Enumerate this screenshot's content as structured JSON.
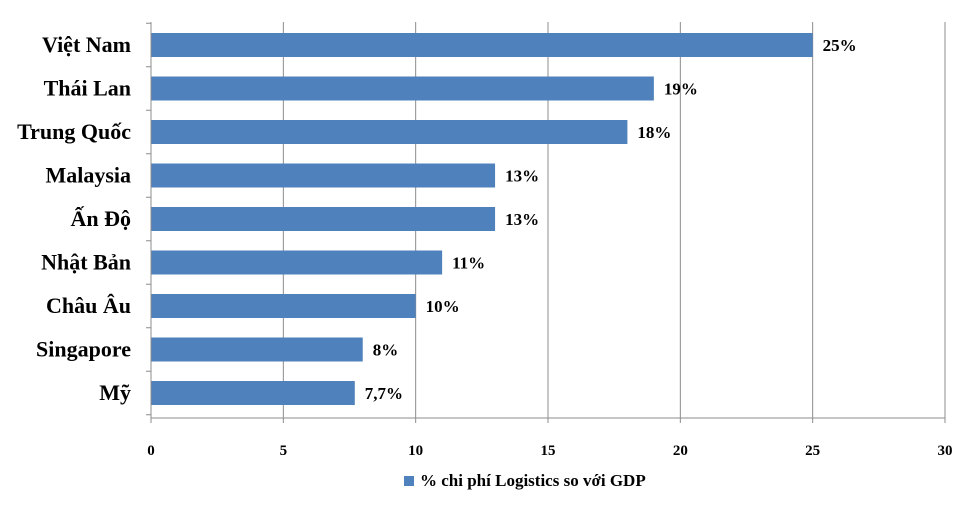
{
  "chart_data": {
    "type": "bar",
    "orientation": "horizontal",
    "categories": [
      "Việt Nam",
      "Thái Lan",
      "Trung Quốc",
      "Malaysia",
      "Ấn Độ",
      "Nhật Bản",
      "Châu Âu",
      "Singapore",
      "Mỹ"
    ],
    "series": [
      {
        "name": "% chi phí Logistics so với GDP",
        "values": [
          25,
          19,
          18,
          13,
          13,
          11,
          10,
          8,
          7.7
        ],
        "data_labels": [
          "25%",
          "19%",
          "18%",
          "13%",
          "13%",
          "11%",
          "10%",
          "8%",
          "7,7%"
        ],
        "color": "#4f81bd"
      }
    ],
    "xlim": [
      0,
      30
    ],
    "x_ticks": [
      0,
      5,
      10,
      15,
      20,
      25,
      30
    ],
    "grid": "vertical",
    "gridline_color": "#8c8c8c",
    "legend_position": "bottom",
    "title": "",
    "xlabel": "",
    "ylabel": ""
  }
}
